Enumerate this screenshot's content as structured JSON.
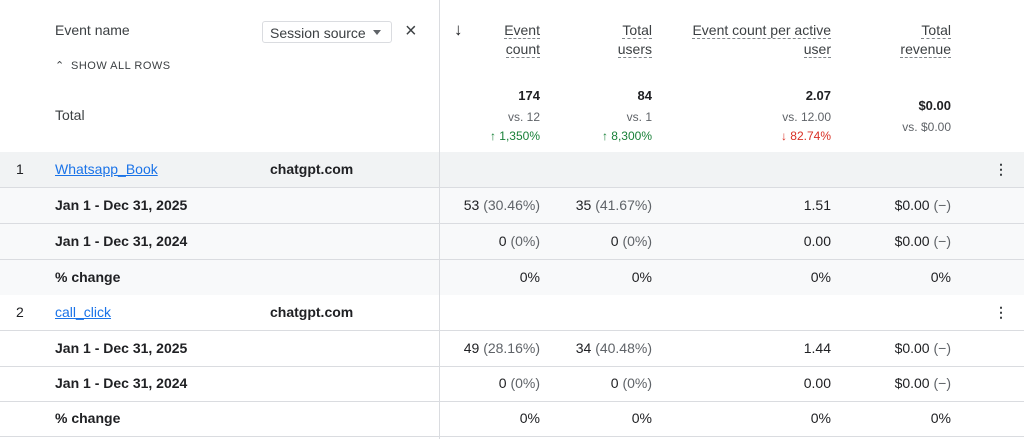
{
  "header": {
    "event_name_label": "Event name",
    "show_all_rows": "SHOW ALL ROWS",
    "total_label": "Total",
    "dimension_select": "Session source",
    "close_glyph": "×",
    "sort_glyph": "↓",
    "columns": [
      {
        "line1": "Event",
        "line2": "count",
        "total": "174",
        "vs": "vs. 12",
        "change": "↑ 1,350%",
        "dir": "up"
      },
      {
        "line1": "Total",
        "line2": "users",
        "total": "84",
        "vs": "vs. 1",
        "change": "↑ 8,300%",
        "dir": "up"
      },
      {
        "line1": "Event count per active",
        "line2": "user",
        "total": "2.07",
        "vs": "vs. 12.00",
        "change": "↓ 82.74%",
        "dir": "down"
      },
      {
        "line1": "Total",
        "line2": "revenue",
        "total": "$0.00",
        "vs": "vs. $0.00",
        "change": "",
        "dir": ""
      }
    ]
  },
  "groups": [
    {
      "index": "1",
      "event": "Whatsapp_Book",
      "source": "chatgpt.com",
      "more_glyph": "⋮",
      "rows": [
        {
          "label": "Jan 1 - Dec 31, 2025",
          "event_count": "53",
          "event_count_pct": "(30.46%)",
          "users": "35",
          "users_pct": "(41.67%)",
          "per_user": "1.51",
          "revenue": "$0.00",
          "revenue_pct": "(−)"
        },
        {
          "label": "Jan 1 - Dec 31, 2024",
          "event_count": "0",
          "event_count_pct": "(0%)",
          "users": "0",
          "users_pct": "(0%)",
          "per_user": "0.00",
          "revenue": "$0.00",
          "revenue_pct": "(−)"
        },
        {
          "label": "% change",
          "event_count": "0%",
          "event_count_pct": "",
          "users": "0%",
          "users_pct": "",
          "per_user": "0%",
          "revenue": "0%",
          "revenue_pct": ""
        }
      ]
    },
    {
      "index": "2",
      "event": "call_click",
      "source": "chatgpt.com",
      "more_glyph": "⋮",
      "rows": [
        {
          "label": "Jan 1 - Dec 31, 2025",
          "event_count": "49",
          "event_count_pct": "(28.16%)",
          "users": "34",
          "users_pct": "(40.48%)",
          "per_user": "1.44",
          "revenue": "$0.00",
          "revenue_pct": "(−)"
        },
        {
          "label": "Jan 1 - Dec 31, 2024",
          "event_count": "0",
          "event_count_pct": "(0%)",
          "users": "0",
          "users_pct": "(0%)",
          "per_user": "0.00",
          "revenue": "$0.00",
          "revenue_pct": "(−)"
        },
        {
          "label": "% change",
          "event_count": "0%",
          "event_count_pct": "",
          "users": "0%",
          "users_pct": "",
          "per_user": "0%",
          "revenue": "0%",
          "revenue_pct": ""
        }
      ]
    }
  ],
  "colors": {
    "link": "#1a73e8",
    "up": "#188038",
    "down": "#d93025",
    "border": "#dadce0"
  }
}
